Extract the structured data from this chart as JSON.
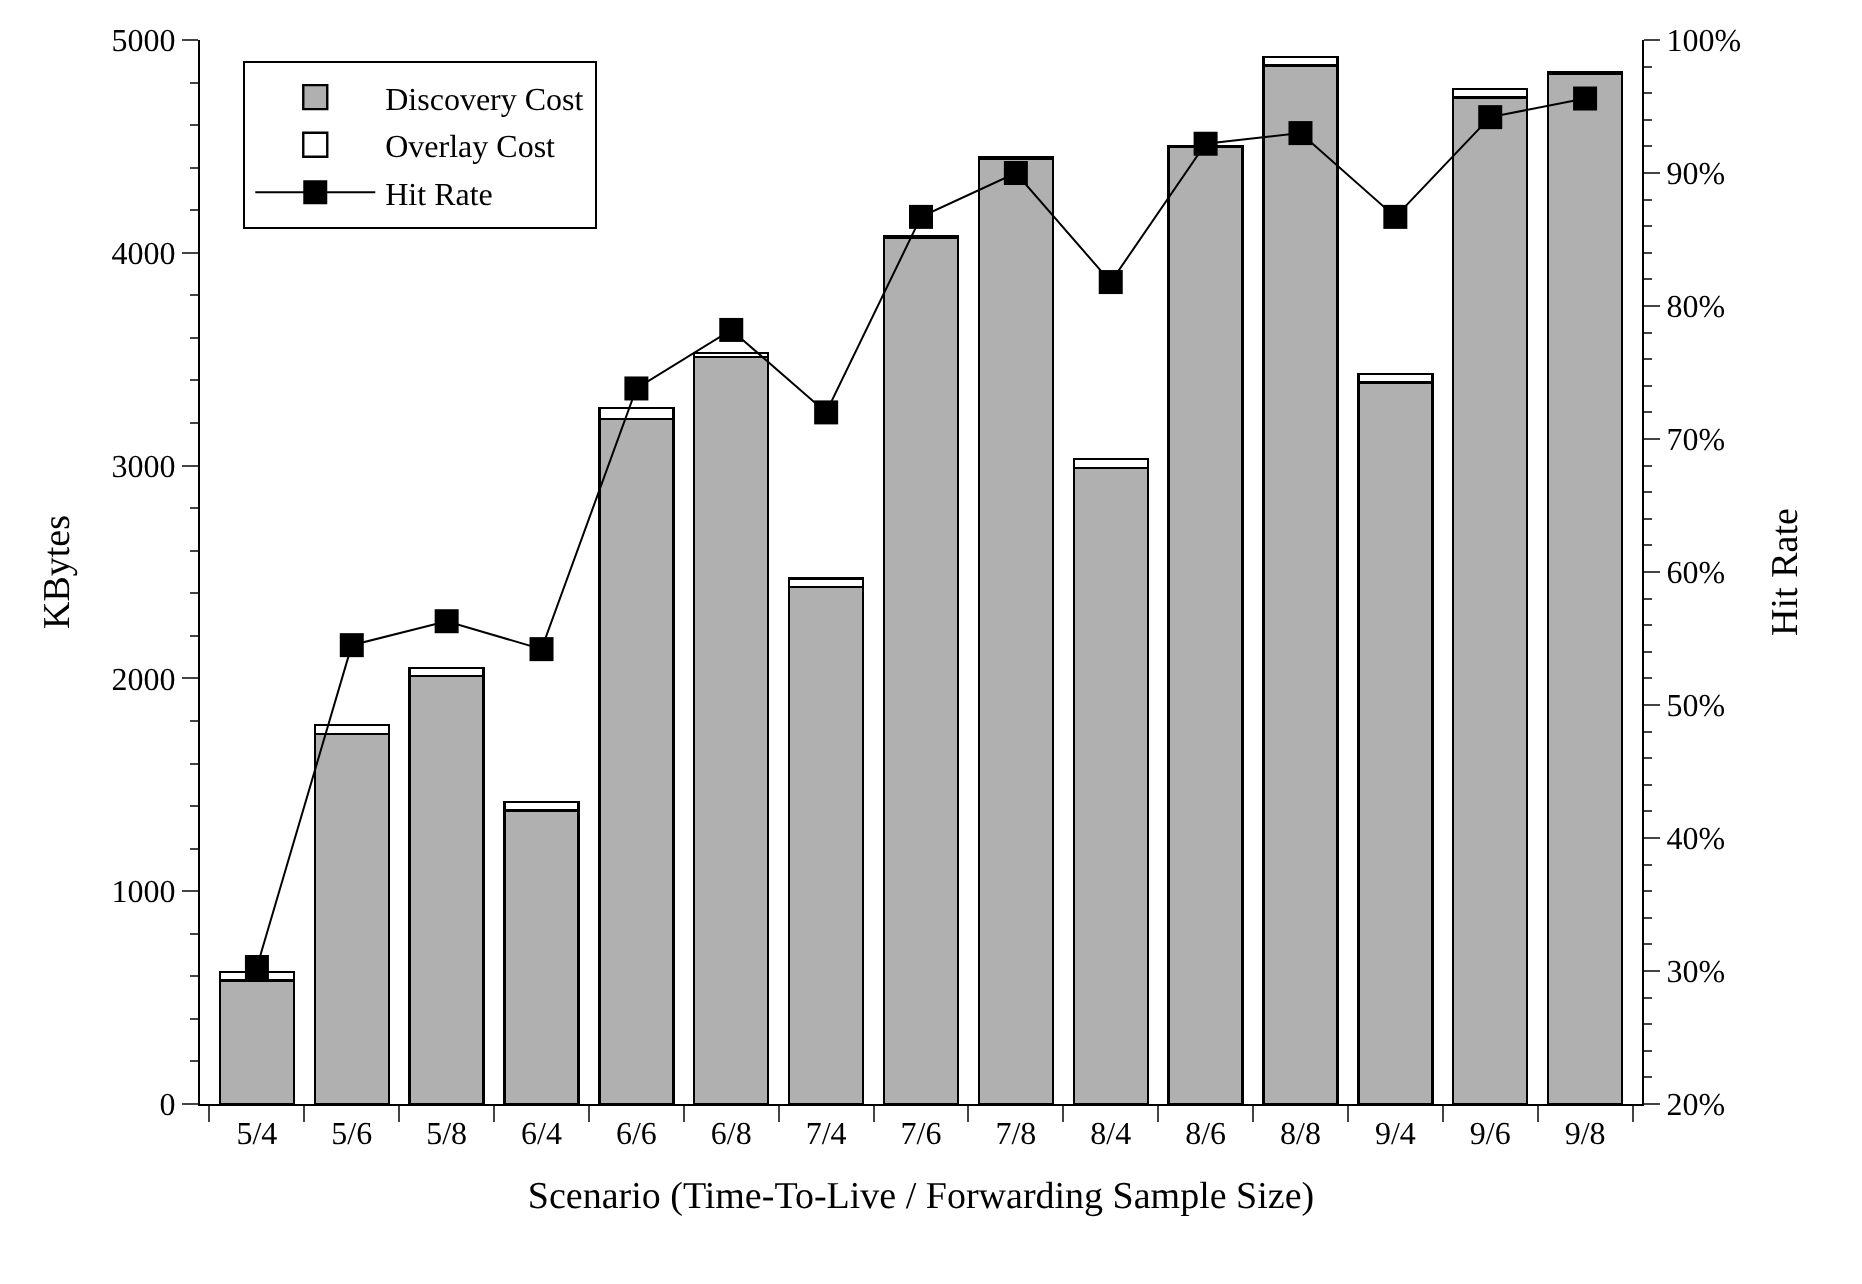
{
  "chart_data": {
    "type": "bar",
    "stacked": true,
    "xlabel": "Scenario (Time-To-Live / Forwarding Sample Size)",
    "ylabel": "KBytes",
    "y2label": "Hit Rate",
    "categories": [
      "5/4",
      "5/6",
      "5/8",
      "6/4",
      "6/6",
      "6/8",
      "7/4",
      "7/6",
      "7/8",
      "8/4",
      "8/6",
      "8/8",
      "9/4",
      "9/6",
      "9/8"
    ],
    "series": [
      {
        "name": "Discovery Cost",
        "color": "#b0b0b0",
        "values": [
          580,
          1740,
          2010,
          1380,
          3220,
          3510,
          2430,
          4070,
          4440,
          2990,
          4500,
          4880,
          3390,
          4730,
          4840
        ]
      },
      {
        "name": "Overlay Cost",
        "color": "#ffffff",
        "values": [
          40,
          40,
          40,
          40,
          50,
          20,
          40,
          10,
          10,
          40,
          null,
          40,
          40,
          40,
          10
        ]
      },
      {
        "name": "Hit Rate",
        "type": "line",
        "axis": "y2",
        "color": "#000000",
        "marker": "square",
        "values": [
          30.3,
          54.5,
          56.3,
          54.2,
          73.8,
          78.2,
          72.0,
          86.7,
          90.0,
          81.8,
          92.2,
          93.0,
          86.7,
          94.2,
          95.6
        ]
      }
    ],
    "ylim": [
      0,
      5000
    ],
    "yticks": [
      0,
      1000,
      2000,
      3000,
      4000,
      5000
    ],
    "y2lim": [
      20,
      100
    ],
    "y2ticks": [
      {
        "value": 20,
        "label": "20%"
      },
      {
        "value": 30,
        "label": "30%"
      },
      {
        "value": 40,
        "label": "40%"
      },
      {
        "value": 50,
        "label": "50%"
      },
      {
        "value": 60,
        "label": "60%"
      },
      {
        "value": 70,
        "label": "70%"
      },
      {
        "value": 80,
        "label": "80%"
      },
      {
        "value": 90,
        "label": "90%"
      },
      {
        "value": 100,
        "label": "100%"
      }
    ],
    "legend": "top left"
  }
}
